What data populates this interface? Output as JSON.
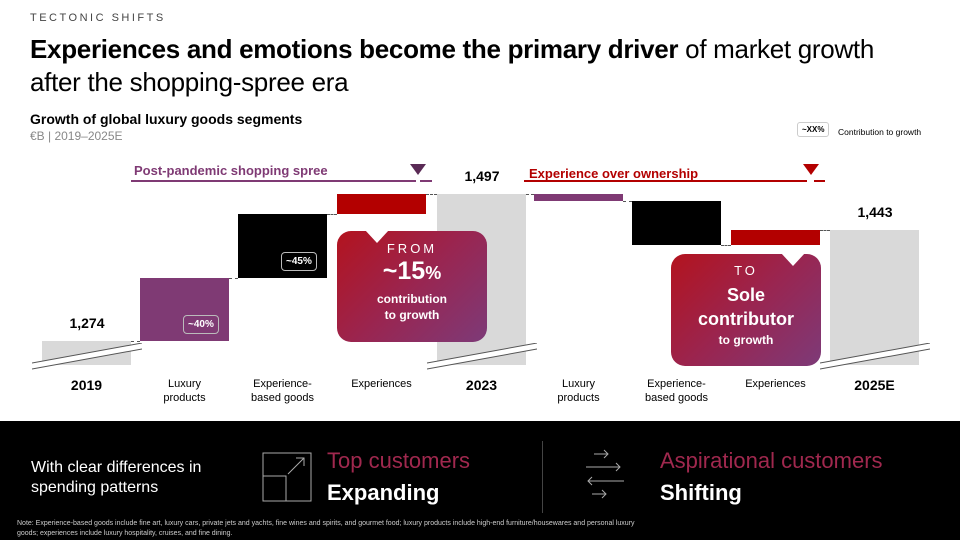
{
  "kicker": "TECTONIC SHIFTS",
  "title": {
    "bold": "Experiences and emotions become the primary driver",
    "rest": " of market growth after the shopping-spree era"
  },
  "chart_data": {
    "type": "waterfall",
    "title": "Growth of global luxury goods segments",
    "subtitle": "€B | 2019–2025E",
    "legend": {
      "box": "~XX%",
      "label": "Contribution to growth",
      "placement": "top-right"
    },
    "phases": [
      "Post-pandemic shopping spree",
      "Experience over ownership"
    ],
    "categories": [
      "2019",
      "Luxury products",
      "Experience-based goods",
      "Experiences",
      "2023",
      "Luxury products",
      "Experience-based goods",
      "Experiences",
      "2025E"
    ],
    "kinds": [
      "total",
      "delta",
      "delta",
      "delta",
      "total",
      "delta",
      "delta",
      "delta",
      "total"
    ],
    "values": [
      1274,
      96,
      96,
      31,
      1497,
      -10,
      -67,
      23,
      1443
    ],
    "value_labels": [
      "1,274",
      "",
      "",
      "",
      "1,497",
      "",
      "",
      "",
      "1,443"
    ],
    "contribution_labels": [
      "",
      "~40%",
      "~45%",
      "",
      "",
      "",
      "",
      "",
      ""
    ],
    "colors": [
      "#d9d9d9",
      "#7f3a74",
      "#000000",
      "#b30000",
      "#d9d9d9",
      "#7f3a74",
      "#000000",
      "#b30000",
      "#d9d9d9"
    ]
  },
  "callouts": [
    {
      "lead": "FROM",
      "big": "~15",
      "big_suffix": "%",
      "line1": "contribution",
      "line2": "to growth"
    },
    {
      "lead": "TO",
      "big": "Sole",
      "line1": "contributor",
      "line2": "to growth"
    }
  ],
  "footer": {
    "intro": "With clear differences in spending patterns",
    "top_title": "Top customers",
    "top_sub": "Expanding",
    "asp_title": "Aspirational customers",
    "asp_sub": "Shifting",
    "note": "Note: Experience-based goods include fine art, luxury cars, private jets and yachts, fine wines and spirits, and gourmet food; luxury products include high-end furniture/housewares and personal luxury goods; experiences include luxury hospitality, cruises, and fine dining."
  }
}
